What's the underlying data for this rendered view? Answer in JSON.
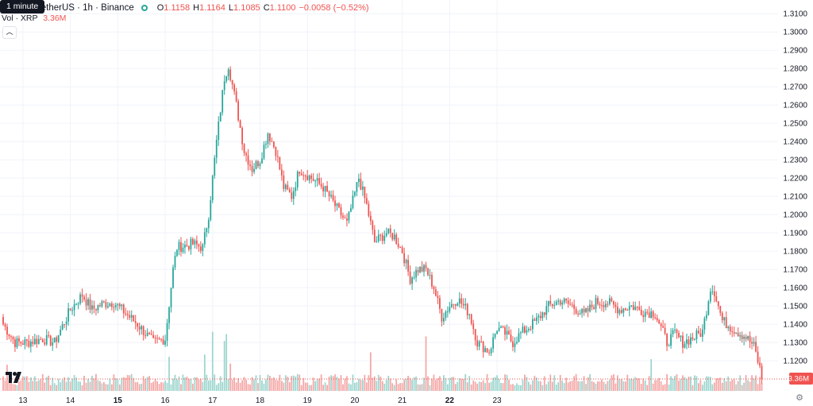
{
  "header": {
    "tooltip": "1 minute",
    "symbol_line": "TetherUS · 1h · Binance",
    "open_label": "O",
    "open_value": "1.1158",
    "high_label": "H",
    "high_value": "1.1164",
    "low_label": "L",
    "low_value": "1.1085",
    "close_label": "C",
    "close_value": "1.1100",
    "change": "−0.0058 (−0.52%)",
    "vol_label": "Vol · XRP",
    "vol_value": "3.36M",
    "collapse_icon": "chevron-up-icon"
  },
  "logo_icon": "tradingview-logo",
  "settings_icon": "gear-icon",
  "colors": {
    "up": "#26a69a",
    "down": "#ef5350",
    "volume_up": "#9ed6cf",
    "volume_down": "#f4a8a7",
    "grid": "#f0f3fa",
    "axis_text": "#131722"
  },
  "chart_data": {
    "type": "candlestick",
    "timeframe": "1h",
    "y_axis_ticks": [
      "1.3100",
      "1.3000",
      "1.2900",
      "1.2800",
      "1.2700",
      "1.2600",
      "1.2500",
      "1.2400",
      "1.2300",
      "1.2200",
      "1.2100",
      "1.2000",
      "1.1900",
      "1.1800",
      "1.1700",
      "1.1600",
      "1.1500",
      "1.1400",
      "1.1300",
      "1.1200"
    ],
    "ylim": [
      1.1035,
      1.3175
    ],
    "x_axis_ticks": [
      "13",
      "14",
      "15",
      "16",
      "17",
      "18",
      "19",
      "20",
      "21",
      "22",
      "23"
    ],
    "x_bold_ticks": [
      "15",
      "22"
    ],
    "last_price_label": "1.1100",
    "last_volume_label": "3.36M",
    "grid": true,
    "price_keypoints": [
      [
        0,
        1.14
      ],
      [
        6,
        1.13
      ],
      [
        12,
        1.13
      ],
      [
        20,
        1.132
      ],
      [
        26,
        1.13
      ],
      [
        34,
        1.148
      ],
      [
        40,
        1.156
      ],
      [
        45,
        1.148
      ],
      [
        50,
        1.151
      ],
      [
        56,
        1.152
      ],
      [
        62,
        1.146
      ],
      [
        68,
        1.14
      ],
      [
        76,
        1.13
      ],
      [
        82,
        1.132
      ],
      [
        86,
        1.17
      ],
      [
        88,
        1.182
      ],
      [
        96,
        1.184
      ],
      [
        101,
        1.182
      ],
      [
        104,
        1.2
      ],
      [
        108,
        1.24
      ],
      [
        112,
        1.275
      ],
      [
        114,
        1.282
      ],
      [
        118,
        1.26
      ],
      [
        122,
        1.235
      ],
      [
        126,
        1.225
      ],
      [
        130,
        1.23
      ],
      [
        134,
        1.245
      ],
      [
        138,
        1.235
      ],
      [
        142,
        1.215
      ],
      [
        146,
        1.21
      ],
      [
        150,
        1.225
      ],
      [
        156,
        1.22
      ],
      [
        162,
        1.215
      ],
      [
        168,
        1.205
      ],
      [
        174,
        1.195
      ],
      [
        180,
        1.22
      ],
      [
        184,
        1.205
      ],
      [
        188,
        1.185
      ],
      [
        194,
        1.19
      ],
      [
        198,
        1.188
      ],
      [
        202,
        1.18
      ],
      [
        206,
        1.165
      ],
      [
        210,
        1.17
      ],
      [
        214,
        1.17
      ],
      [
        218,
        1.16
      ],
      [
        222,
        1.144
      ],
      [
        226,
        1.15
      ],
      [
        230,
        1.154
      ],
      [
        236,
        1.146
      ],
      [
        240,
        1.13
      ],
      [
        246,
        1.125
      ],
      [
        250,
        1.138
      ],
      [
        254,
        1.135
      ],
      [
        258,
        1.13
      ],
      [
        262,
        1.135
      ],
      [
        270,
        1.142
      ],
      [
        276,
        1.15
      ],
      [
        282,
        1.153
      ],
      [
        288,
        1.15
      ],
      [
        294,
        1.145
      ],
      [
        300,
        1.152
      ],
      [
        306,
        1.152
      ],
      [
        312,
        1.148
      ],
      [
        318,
        1.15
      ],
      [
        324,
        1.147
      ],
      [
        330,
        1.146
      ],
      [
        336,
        1.13
      ],
      [
        340,
        1.135
      ],
      [
        344,
        1.13
      ],
      [
        350,
        1.133
      ],
      [
        354,
        1.136
      ],
      [
        358,
        1.16
      ],
      [
        360,
        1.158
      ],
      [
        364,
        1.142
      ],
      [
        370,
        1.137
      ],
      [
        376,
        1.133
      ],
      [
        380,
        1.128
      ],
      [
        383,
        1.1158
      ],
      [
        384,
        1.11
      ]
    ],
    "volume_spikes": [
      [
        2,
        2.3
      ],
      [
        84,
        3.0
      ],
      [
        102,
        3.2
      ],
      [
        106,
        5.2
      ],
      [
        112,
        4.4
      ],
      [
        113,
        5.0
      ],
      [
        115,
        2.4
      ],
      [
        186,
        3.4
      ],
      [
        214,
        4.8
      ],
      [
        328,
        2.8
      ]
    ],
    "volume_baseline": 1.0
  }
}
